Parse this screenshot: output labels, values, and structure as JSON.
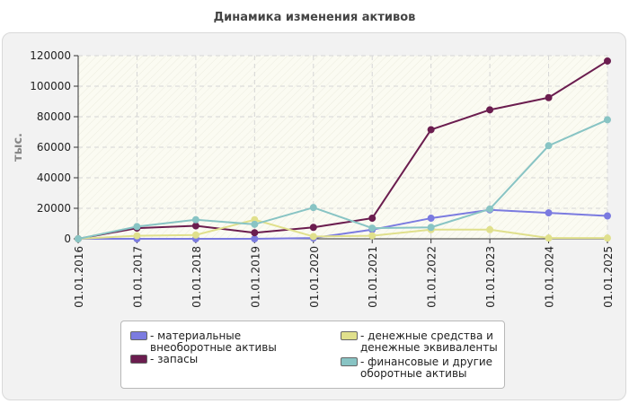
{
  "chart_data": {
    "type": "line",
    "title": "Динамика изменения активов",
    "ylabel": "тыс.",
    "xlabel": "",
    "ylim": [
      0,
      120000
    ],
    "yticks": [
      "120000",
      "100000",
      "80000",
      "60000",
      "40000",
      "20000",
      "0"
    ],
    "categories": [
      "01.01.2016",
      "01.01.2017",
      "01.01.2018",
      "01.01.2019",
      "01.01.2020",
      "01.01.2021",
      "01.01.2022",
      "01.01.2023",
      "01.01.2024",
      "01.01.2025"
    ],
    "series": [
      {
        "name": "материальные внеоборотные активы",
        "color": "#7b7be0",
        "values": [
          0,
          0,
          0,
          0,
          500,
          6000,
          13500,
          19000,
          17000,
          15000
        ]
      },
      {
        "name": "запасы",
        "color": "#6b1d4f",
        "values": [
          0,
          7000,
          8500,
          4000,
          7500,
          13500,
          71500,
          84500,
          92500,
          116500
        ]
      },
      {
        "name": "денежные средства и денежные эквиваленты",
        "color": "#e0e08c",
        "values": [
          0,
          2000,
          2500,
          12500,
          1500,
          2000,
          6000,
          6000,
          500,
          500
        ]
      },
      {
        "name": "финансовые и другие оборотные активы",
        "color": "#88c4c4",
        "values": [
          0,
          8000,
          12500,
          9500,
          20500,
          7000,
          7500,
          19500,
          61000,
          78000
        ]
      }
    ]
  },
  "legend": {
    "prefix": "- ",
    "items": [
      {
        "label": "материальные внеоборотные активы"
      },
      {
        "label": "запасы"
      },
      {
        "label": "денежные средства и денежные эквиваленты"
      },
      {
        "label": "финансовые и другие оборотные активы"
      }
    ]
  }
}
